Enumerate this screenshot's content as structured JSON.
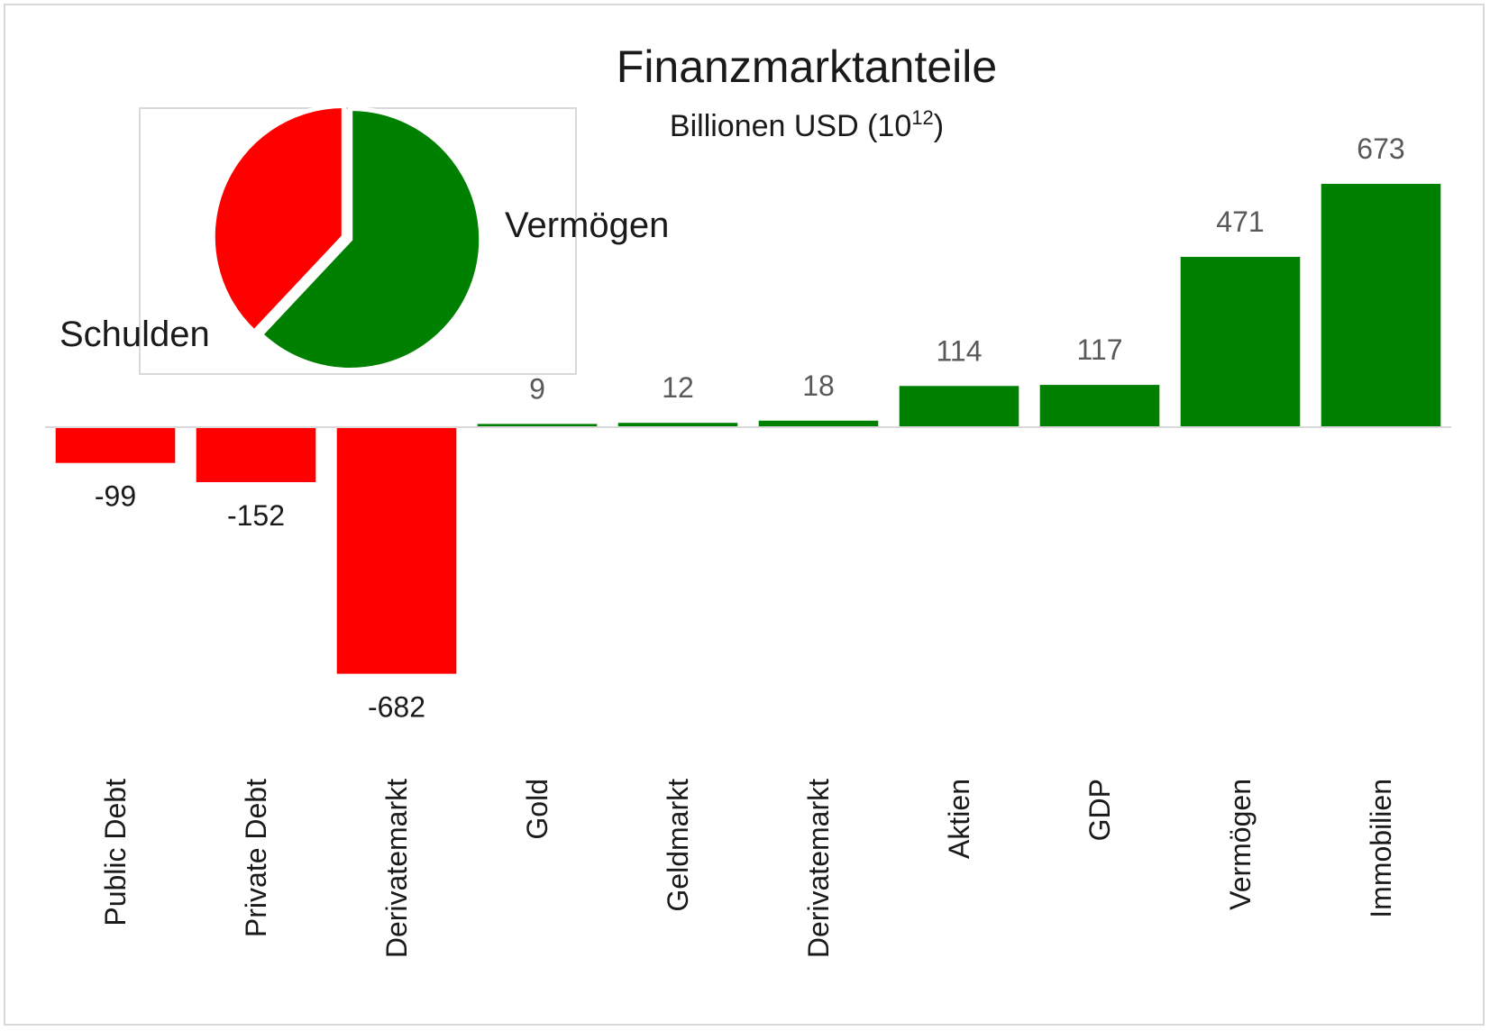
{
  "chart_data": {
    "type": "bar",
    "title": "Finanzmarktanteile",
    "subtitle_base": "Billionen USD (10",
    "subtitle_sup": "12",
    "subtitle_end": ")",
    "categories": [
      "Public Debt",
      "Private Debt",
      "Derivatemarkt",
      "Gold",
      "Geldmarkt",
      "Derivatemarkt",
      "Aktien",
      "GDP",
      "Vermögen",
      "Immobilien"
    ],
    "values": [
      -99,
      -152,
      -682,
      9,
      12,
      18,
      114,
      117,
      471,
      673
    ],
    "xlabel": "",
    "ylabel": "",
    "ylim": [
      -682,
      673
    ],
    "legend": "none",
    "grid": false,
    "colors": {
      "negative": "#ff0000",
      "positive": "#008000",
      "axis": "#d9d9d9",
      "label_negative": "#1a1a1a",
      "label_positive": "#595959"
    }
  },
  "inset_pie": {
    "type": "pie",
    "slices": [
      {
        "label": "Vermögen",
        "value": 62,
        "color": "#008000"
      },
      {
        "label": "Schulden",
        "value": 38,
        "color": "#ff0000"
      }
    ]
  }
}
